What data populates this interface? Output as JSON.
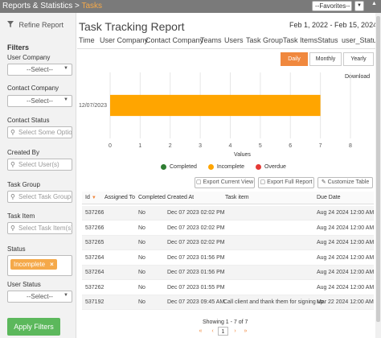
{
  "topbar": {
    "crumb_parent": "Reports & Statistics >",
    "crumb_current": "Tasks",
    "favorites": "--Favorites--"
  },
  "sidebar": {
    "refine": "Refine Report",
    "filters_heading": "Filters",
    "filters": [
      {
        "label": "User Company",
        "value": "--Select--",
        "kind": "select"
      },
      {
        "label": "Contact Company",
        "value": "--Select--",
        "kind": "select"
      },
      {
        "label": "Contact Status",
        "placeholder": "Select Some Options",
        "kind": "input"
      },
      {
        "label": "Created By",
        "placeholder": "Select User(s)",
        "kind": "input"
      },
      {
        "label": "Task Group",
        "placeholder": "Select Task Group(s)",
        "kind": "input"
      },
      {
        "label": "Task Item",
        "placeholder": "Select Task Item(s)",
        "kind": "input"
      },
      {
        "label": "Status",
        "tag": "Incomplete",
        "kind": "tags"
      },
      {
        "label": "User Status",
        "value": "--Select--",
        "kind": "select"
      }
    ],
    "apply_label": "Apply Filters"
  },
  "main": {
    "title": "Task Tracking Report",
    "date_range": "Feb 1, 2022 - Feb 15, 2024",
    "tabs": [
      "Time",
      "User Company",
      "Contact Company",
      "Teams",
      "Users",
      "Task Group",
      "Task Items",
      "Status",
      "user_Status"
    ],
    "periods": [
      "Daily",
      "Monthly",
      "Yearly"
    ],
    "active_period": "Daily",
    "download_label": "Download",
    "legend": [
      {
        "label": "Completed",
        "color": "#2e7d32"
      },
      {
        "label": "Incomplete",
        "color": "#ffa500"
      },
      {
        "label": "Overdue",
        "color": "#e53935"
      }
    ],
    "table_buttons": {
      "export_view": "Export Current View",
      "export_full": "Export Full Report",
      "customize": "Customize Table"
    },
    "columns": [
      "Id",
      "Assigned To",
      "Completed",
      "Created At",
      "Task item",
      "Due Date"
    ],
    "rows": [
      {
        "id": "537266",
        "assigned": "",
        "completed": "No",
        "created": "Dec 07 2023 02:02 PM",
        "task": "",
        "due": "Aug 24 2024 12:00 AM"
      },
      {
        "id": "537266",
        "assigned": "",
        "completed": "No",
        "created": "Dec 07 2023 02:02 PM",
        "task": "",
        "due": "Aug 24 2024 12:00 AM"
      },
      {
        "id": "537265",
        "assigned": "",
        "completed": "No",
        "created": "Dec 07 2023 02:02 PM",
        "task": "",
        "due": "Aug 24 2024 12:00 AM"
      },
      {
        "id": "537264",
        "assigned": "",
        "completed": "No",
        "created": "Dec 07 2023 01:56 PM",
        "task": "",
        "due": "Aug 24 2024 12:00 AM"
      },
      {
        "id": "537264",
        "assigned": "",
        "completed": "No",
        "created": "Dec 07 2023 01:56 PM",
        "task": "",
        "due": "Aug 24 2024 12:00 AM"
      },
      {
        "id": "537262",
        "assigned": "",
        "completed": "No",
        "created": "Dec 07 2023 01:55 PM",
        "task": "",
        "due": "Aug 24 2024 12:00 AM"
      },
      {
        "id": "537192",
        "assigned": "",
        "completed": "No",
        "created": "Dec 07 2023 09:45 AM",
        "task": "Call client and thank them for signing up",
        "due": "Mar 22 2024 12:00 AM"
      }
    ],
    "showing": "Showing 1 - 7 of 7",
    "current_page": "1"
  },
  "chart_data": {
    "type": "bar",
    "orientation": "horizontal",
    "categories": [
      "12/07/2023"
    ],
    "series": [
      {
        "name": "Incomplete",
        "values": [
          7
        ],
        "color": "#ffa500"
      }
    ],
    "xlabel": "Values",
    "xlim": [
      0,
      8
    ],
    "xticks": [
      0,
      1,
      2,
      3,
      4,
      5,
      6,
      7,
      8
    ],
    "grid": true
  }
}
